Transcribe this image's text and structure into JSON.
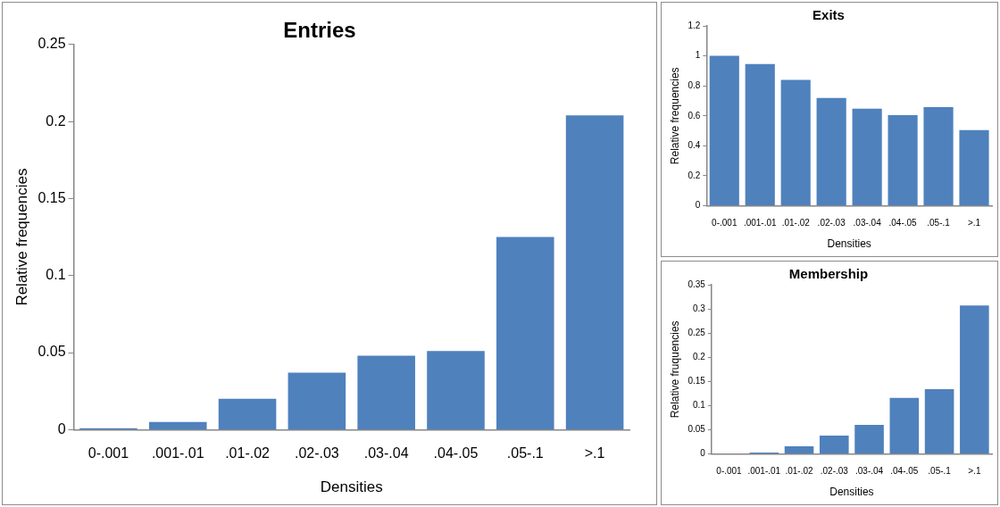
{
  "chart_data": [
    {
      "type": "bar",
      "title": "Entries",
      "xlabel": "Densities",
      "ylabel": "Relative frequencies",
      "categories": [
        "0-.001",
        ".001-.01",
        ".01-.02",
        ".02-.03",
        ".03-.04",
        ".04-.05",
        ".05-.1",
        ">.1"
      ],
      "values": [
        0.001,
        0.005,
        0.02,
        0.037,
        0.048,
        0.051,
        0.125,
        0.204
      ],
      "color": "#4f81bd",
      "ylim": [
        0,
        0.25
      ],
      "yticks": [
        0,
        0.05,
        0.1,
        0.15,
        0.2,
        0.25
      ]
    },
    {
      "type": "bar",
      "title": "Exits",
      "xlabel": "Densities",
      "ylabel": "Relative frequencies",
      "categories": [
        "0-.001",
        ".001-.01",
        ".01-.02",
        ".02-.03",
        ".03-.04",
        ".04-.05",
        ".05-.1",
        ">.1"
      ],
      "values": [
        1,
        0.945,
        0.84,
        0.72,
        0.648,
        0.605,
        0.658,
        0.505
      ],
      "color": "#4f81bd",
      "ylim": [
        0,
        1.2
      ],
      "yticks": [
        0,
        0.2,
        0.4,
        0.6,
        0.8,
        1,
        1.2
      ]
    },
    {
      "type": "bar",
      "title": "Membership",
      "xlabel": "Densities",
      "ylabel": "Relative fruquencies",
      "categories": [
        "0-.001",
        ".001-.01",
        ".01-.02",
        ".02-.03",
        ".03-.04",
        ".04-.05",
        ".05-.1",
        ">.1"
      ],
      "values": [
        0,
        0.003,
        0.016,
        0.038,
        0.06,
        0.116,
        0.134,
        0.307
      ],
      "color": "#4f81bd",
      "ylim": [
        0,
        0.35
      ],
      "yticks": [
        0,
        0.05,
        0.1,
        0.15,
        0.2,
        0.25,
        0.3,
        0.35
      ]
    }
  ]
}
